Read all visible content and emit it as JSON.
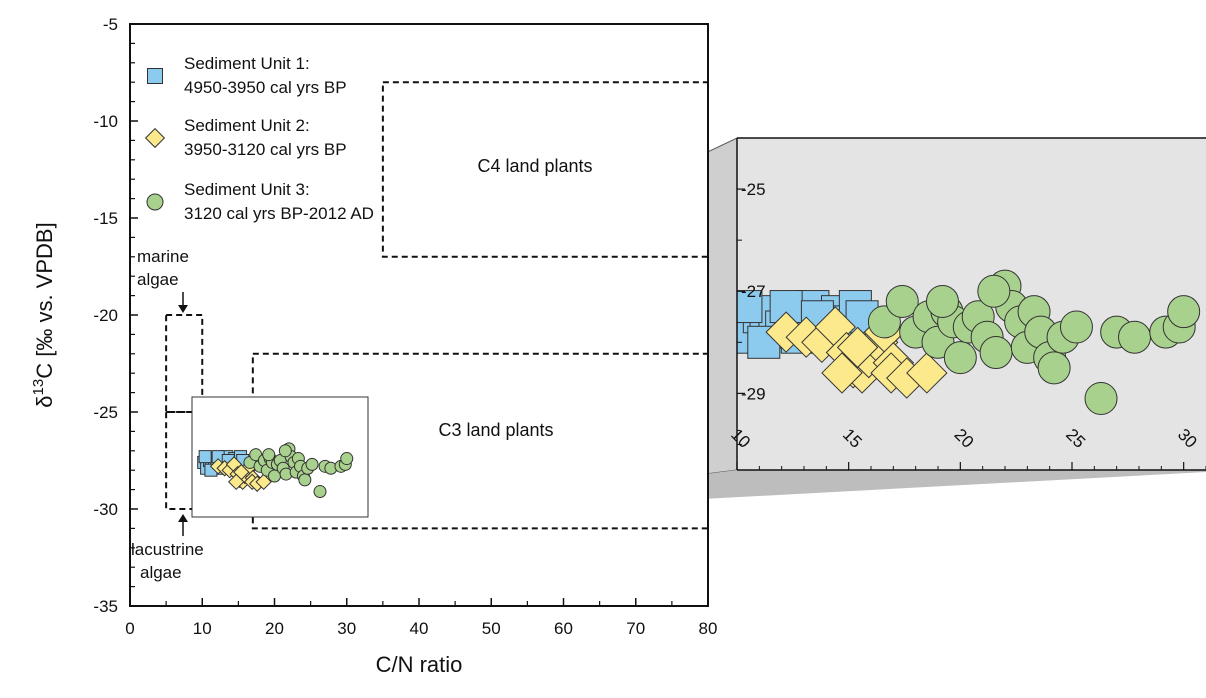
{
  "chart_data": {
    "type": "scatter",
    "xlabel": "C/N ratio",
    "ylabel_parts": [
      "δ",
      "13",
      "C [‰ vs. VPDB]"
    ],
    "xlim": [
      0,
      80
    ],
    "ylim": [
      -35,
      -5
    ],
    "x_ticks": [
      "0",
      "10",
      "20",
      "30",
      "40",
      "50",
      "60",
      "70",
      "80"
    ],
    "y_ticks": [
      "-5",
      "-10",
      "-15",
      "-20",
      "-25",
      "-30",
      "-35"
    ],
    "legend": {
      "placement": "top-left"
    },
    "series": [
      {
        "name": "Sediment Unit 1: 4950-3950 cal yrs BP",
        "legend_lines": [
          "Sediment Unit 1:",
          "4950-3950 cal yrs BP"
        ],
        "marker": "square",
        "color": "#8ccbee",
        "points": [
          [
            10.2,
            27.6
          ],
          [
            10.6,
            27.9
          ],
          [
            11.0,
            27.5
          ],
          [
            11.3,
            27.8
          ],
          [
            11.7,
            27.4
          ],
          [
            12.0,
            27.7
          ],
          [
            12.4,
            27.6
          ],
          [
            12.7,
            27.9
          ],
          [
            13.0,
            27.5
          ],
          [
            13.4,
            27.3
          ],
          [
            13.8,
            27.6
          ],
          [
            14.1,
            27.8
          ],
          [
            14.5,
            27.4
          ],
          [
            14.9,
            27.6
          ],
          [
            15.3,
            27.3
          ],
          [
            15.6,
            27.5
          ],
          [
            10.4,
            27.3
          ],
          [
            11.2,
            28.0
          ],
          [
            12.2,
            27.3
          ],
          [
            13.6,
            27.5
          ]
        ]
      },
      {
        "name": "Sediment Unit 2: 3950-3120 cal yrs BP",
        "legend_lines": [
          "Sediment Unit 2:",
          "3950-3120 cal yrs BP"
        ],
        "marker": "diamond",
        "color": "#fbe98c",
        "points": [
          [
            12.2,
            27.8
          ],
          [
            13.1,
            27.9
          ],
          [
            13.8,
            28.0
          ],
          [
            14.4,
            27.7
          ],
          [
            14.9,
            28.2
          ],
          [
            15.2,
            28.5
          ],
          [
            15.6,
            28.6
          ],
          [
            15.9,
            28.3
          ],
          [
            16.3,
            28.0
          ],
          [
            16.6,
            27.8
          ],
          [
            17.0,
            28.4
          ],
          [
            15.4,
            28.1
          ],
          [
            14.7,
            28.6
          ],
          [
            16.9,
            28.6
          ],
          [
            17.6,
            28.7
          ],
          [
            18.5,
            28.6
          ]
        ]
      },
      {
        "name": "Sediment Unit 3: 3120 cal yrs BP-2012 AD",
        "legend_lines": [
          "Sediment Unit 3:",
          "3120 cal yrs BP-2012 AD"
        ],
        "marker": "circle",
        "color": "#a9d18e",
        "points": [
          [
            16.6,
            27.6
          ],
          [
            17.4,
            27.2
          ],
          [
            18.0,
            27.8
          ],
          [
            18.6,
            27.5
          ],
          [
            19.0,
            28.0
          ],
          [
            19.4,
            27.4
          ],
          [
            19.7,
            27.6
          ],
          [
            20.0,
            28.3
          ],
          [
            20.4,
            27.7
          ],
          [
            20.8,
            27.5
          ],
          [
            21.2,
            27.9
          ],
          [
            21.6,
            28.2
          ],
          [
            22.0,
            26.9
          ],
          [
            22.3,
            27.3
          ],
          [
            22.7,
            27.6
          ],
          [
            23.0,
            28.1
          ],
          [
            23.3,
            27.4
          ],
          [
            23.6,
            27.8
          ],
          [
            24.0,
            28.3
          ],
          [
            24.2,
            28.5
          ],
          [
            24.6,
            27.9
          ],
          [
            25.2,
            27.7
          ],
          [
            26.3,
            29.1
          ],
          [
            27.0,
            27.8
          ],
          [
            27.8,
            27.9
          ],
          [
            29.2,
            27.8
          ],
          [
            29.8,
            27.7
          ],
          [
            30.0,
            27.4
          ],
          [
            19.2,
            27.2
          ],
          [
            21.5,
            27.0
          ]
        ]
      }
    ],
    "regions": [
      {
        "label": "C4 land plants",
        "x": [
          35,
          80
        ],
        "y": [
          -17,
          -8
        ]
      },
      {
        "label": "C3 land plants",
        "x": [
          17,
          80
        ],
        "y": [
          -31,
          -22
        ]
      },
      {
        "label": "marine algae",
        "label_lines": [
          "marine",
          "algae"
        ],
        "x": [
          5,
          10
        ],
        "y": [
          -25,
          -20
        ]
      },
      {
        "label": "lacustrine algae",
        "label_lines": [
          "lacustrine",
          "algae"
        ],
        "x": [
          5,
          10
        ],
        "y": [
          -30,
          -25
        ]
      }
    ],
    "inset": {
      "xlim": [
        10,
        31
      ],
      "ylim": [
        -30.5,
        -24
      ],
      "x_ticks": [
        "10",
        "15",
        "20",
        "25",
        "30"
      ],
      "y_ticks": [
        "-25",
        "-27",
        "-29"
      ]
    }
  }
}
